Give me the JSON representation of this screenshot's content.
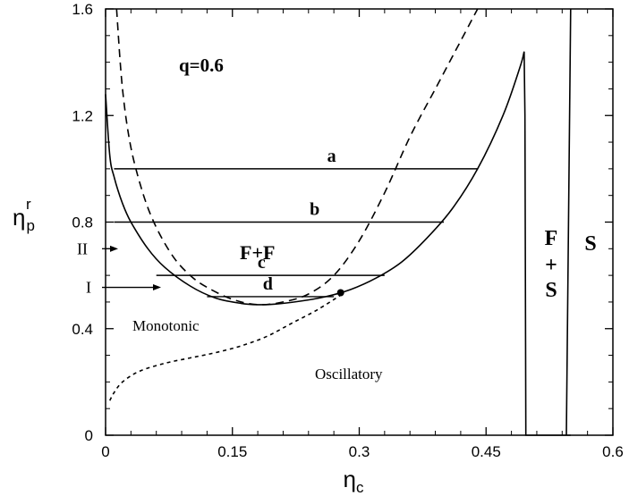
{
  "chart_data": {
    "type": "line",
    "xlabel": "η",
    "xlabel_sub": "c",
    "ylabel": "η",
    "ylabel_sub": "p",
    "ylabel_sup": "r",
    "xlim": [
      0,
      0.6
    ],
    "ylim": [
      0,
      1.6
    ],
    "xticks": [
      {
        "value": 0,
        "label": "0"
      },
      {
        "value": 0.15,
        "label": "0.15"
      },
      {
        "value": 0.3,
        "label": "0.3"
      },
      {
        "value": 0.45,
        "label": "0.45"
      },
      {
        "value": 0.6,
        "label": "0.6"
      }
    ],
    "yticks": [
      {
        "value": 0,
        "label": "0"
      },
      {
        "value": 0.4,
        "label": "0.4"
      },
      {
        "value": 0.8,
        "label": "0.8"
      },
      {
        "value": 1.2,
        "label": "1.2"
      },
      {
        "value": 1.6,
        "label": "1.6"
      }
    ],
    "grid": false,
    "series": [
      {
        "style": "solid",
        "x": [
          0.0,
          0.005,
          0.01,
          0.02,
          0.03,
          0.05,
          0.07,
          0.1,
          0.13,
          0.16,
          0.18,
          0.2,
          0.23,
          0.26,
          0.29,
          0.32,
          0.35,
          0.38,
          0.41,
          0.44,
          0.47,
          0.49,
          0.495,
          0.496,
          0.497,
          0.55,
          0.545,
          0.55
        ],
        "y": [
          1.28,
          1.05,
          0.97,
          0.87,
          0.8,
          0.7,
          0.63,
          0.56,
          0.515,
          0.495,
          0.49,
          0.492,
          0.503,
          0.52,
          0.547,
          0.59,
          0.65,
          0.74,
          0.85,
          1.0,
          1.2,
          1.38,
          1.44,
          1.2,
          0.0,
          0.0,
          0.0,
          1.6
        ]
      },
      {
        "style": "dashed",
        "x": [
          0.013,
          0.02,
          0.03,
          0.045,
          0.06,
          0.08,
          0.1,
          0.12,
          0.15,
          0.18,
          0.21,
          0.24,
          0.27,
          0.3,
          0.33,
          0.36,
          0.39,
          0.42,
          0.44
        ],
        "y": [
          1.6,
          1.3,
          1.08,
          0.9,
          0.78,
          0.67,
          0.6,
          0.555,
          0.51,
          0.49,
          0.5,
          0.53,
          0.6,
          0.73,
          0.91,
          1.12,
          1.3,
          1.48,
          1.6
        ]
      },
      {
        "style": "dotted",
        "x": [
          0.005,
          0.01,
          0.02,
          0.04,
          0.07,
          0.1,
          0.13,
          0.16,
          0.19,
          0.22,
          0.25,
          0.28
        ],
        "y": [
          0.13,
          0.16,
          0.2,
          0.24,
          0.27,
          0.29,
          0.31,
          0.335,
          0.37,
          0.42,
          0.47,
          0.53
        ]
      }
    ],
    "tie_lines": [
      {
        "label": "a",
        "x1": 0.01,
        "x2": 0.44,
        "y": 1.0
      },
      {
        "label": "b",
        "x1": 0.01,
        "x2": 0.4,
        "y": 0.8
      },
      {
        "label": "c",
        "x1": 0.06,
        "x2": 0.33,
        "y": 0.6
      },
      {
        "label": "d",
        "x1": 0.12,
        "x2": 0.27,
        "y": 0.52
      }
    ],
    "critical_point": {
      "x": 0.278,
      "y": 0.535
    },
    "arrows": [
      {
        "label": "II",
        "y": 0.7
      },
      {
        "label": "I",
        "y": 0.555
      }
    ],
    "annotations": {
      "q": "q=0.6",
      "ff": "F+F",
      "fs": [
        "F",
        "+",
        "S"
      ],
      "s": "S",
      "monotonic": "Monotonic",
      "oscillatory": "Oscillatory"
    }
  }
}
